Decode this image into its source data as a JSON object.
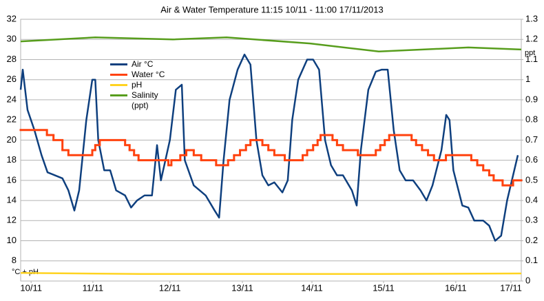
{
  "chart_data": {
    "type": "line",
    "title": "Air & Water Temperature 11:15 10/11 - 11:00 17/11/2013",
    "ylabel": "°C + pH",
    "y2label": "ppt",
    "xlim": [
      0,
      167.75
    ],
    "xticks": [
      {
        "value": 3.5,
        "label": "10/11"
      },
      {
        "value": 24.2,
        "label": "11/11"
      },
      {
        "value": 50,
        "label": "12/11"
      },
      {
        "value": 74.3,
        "label": "13/11"
      },
      {
        "value": 97.6,
        "label": "14/11"
      },
      {
        "value": 121.6,
        "label": "15/11"
      },
      {
        "value": 145.8,
        "label": "16/11"
      },
      {
        "value": 164.3,
        "label": "17/11"
      }
    ],
    "ylim": [
      6,
      32
    ],
    "yticks": [
      8,
      10,
      12,
      14,
      16,
      18,
      20,
      22,
      24,
      26,
      28,
      30,
      32
    ],
    "y2lim": [
      0,
      1.3
    ],
    "y2ticks": [
      0,
      0.1,
      0.2,
      0.3,
      0.4,
      0.5,
      0.6,
      0.7,
      0.8,
      0.9,
      1,
      1.1,
      1.2,
      1.3
    ],
    "grid": true,
    "series": [
      {
        "name": "Air °C",
        "color": "#0e3f7e",
        "style": "line",
        "x": [
          0,
          0.7,
          2.3,
          4.6,
          7,
          9,
          11.5,
          14,
          16,
          18,
          19.6,
          22,
          24,
          25,
          26,
          28,
          30,
          32,
          35,
          37,
          39,
          41.5,
          44,
          45.7,
          47,
          50,
          52,
          54,
          55,
          58,
          60,
          62,
          65,
          66.5,
          68,
          70,
          72.7,
          75,
          77,
          79,
          81,
          83,
          85,
          87.7,
          89.5,
          91,
          93,
          96,
          98,
          100,
          102,
          104,
          106,
          108,
          111,
          112.6,
          114,
          116.5,
          119,
          121,
          123,
          125,
          127,
          129,
          131.5,
          134,
          136,
          138,
          141,
          142.6,
          143.7,
          145,
          148,
          150,
          152,
          155,
          157,
          159,
          161,
          163,
          165,
          166.6
        ],
        "values": [
          25,
          27,
          23,
          21,
          18.5,
          16.8,
          16.5,
          16.2,
          15,
          13,
          15,
          22,
          26,
          26,
          20,
          17,
          17,
          15,
          14.5,
          13.3,
          14,
          14.5,
          14.5,
          19.5,
          16,
          20,
          25,
          25.5,
          18,
          15.5,
          15,
          14.5,
          13,
          12.3,
          18,
          24,
          27,
          28.5,
          27.5,
          20,
          16.5,
          15.5,
          15.8,
          14.8,
          16,
          22,
          26,
          28,
          28,
          27,
          20,
          17.5,
          16.5,
          16.5,
          15,
          13.5,
          19,
          25,
          26.8,
          27,
          27,
          21,
          17,
          16,
          16,
          15,
          14,
          15.5,
          19,
          22.5,
          22,
          17,
          13.5,
          13.3,
          12,
          12,
          11.5,
          10,
          10.5,
          14,
          16.5,
          18.5
        ]
      },
      {
        "name": "Water °C",
        "color": "#ff420e",
        "style": "step",
        "x": [
          0,
          8.8,
          11,
          14,
          16,
          24,
          25,
          26.5,
          35,
          36.5,
          38,
          39.5,
          49.5,
          50.5,
          53.5,
          55.5,
          58,
          60.5,
          65.5,
          69.5,
          71.5,
          73.5,
          75.5,
          77,
          81,
          83,
          85,
          88.5,
          94.5,
          96,
          98,
          99.5,
          100.5,
          104.5,
          106,
          108,
          113,
          119,
          120.5,
          122,
          123.5,
          131,
          132.5,
          134.5,
          136.5,
          138.5,
          142.5,
          151,
          153,
          155,
          157,
          158.5,
          161.5,
          165
        ],
        "values": [
          21,
          20.5,
          20,
          19,
          18.5,
          19,
          19.5,
          20,
          19.5,
          19,
          18.5,
          18,
          17.5,
          18,
          18.5,
          19,
          18.5,
          18,
          17.5,
          18,
          18.5,
          19,
          19.5,
          20,
          19.5,
          19,
          18.5,
          18,
          18.5,
          19,
          19.5,
          20,
          20.5,
          20,
          19.5,
          19,
          18.5,
          19,
          19.5,
          20,
          20.5,
          20,
          19.5,
          19,
          18.5,
          18,
          18.5,
          18,
          17.5,
          17,
          16.5,
          16,
          15.5,
          16
        ]
      },
      {
        "name": "pH",
        "color": "#ffd320",
        "style": "line",
        "x": [
          0,
          40,
          80,
          120,
          167.75
        ],
        "values": [
          6.8,
          6.7,
          6.7,
          6.7,
          6.75
        ]
      },
      {
        "name": "Salinity (ppt)",
        "color": "#579d1c",
        "style": "line",
        "axis": "y2",
        "x": [
          0,
          25,
          51,
          69,
          97,
          120,
          150,
          167.75
        ],
        "values": [
          1.19,
          1.21,
          1.2,
          1.21,
          1.18,
          1.14,
          1.16,
          1.15
        ]
      }
    ]
  }
}
